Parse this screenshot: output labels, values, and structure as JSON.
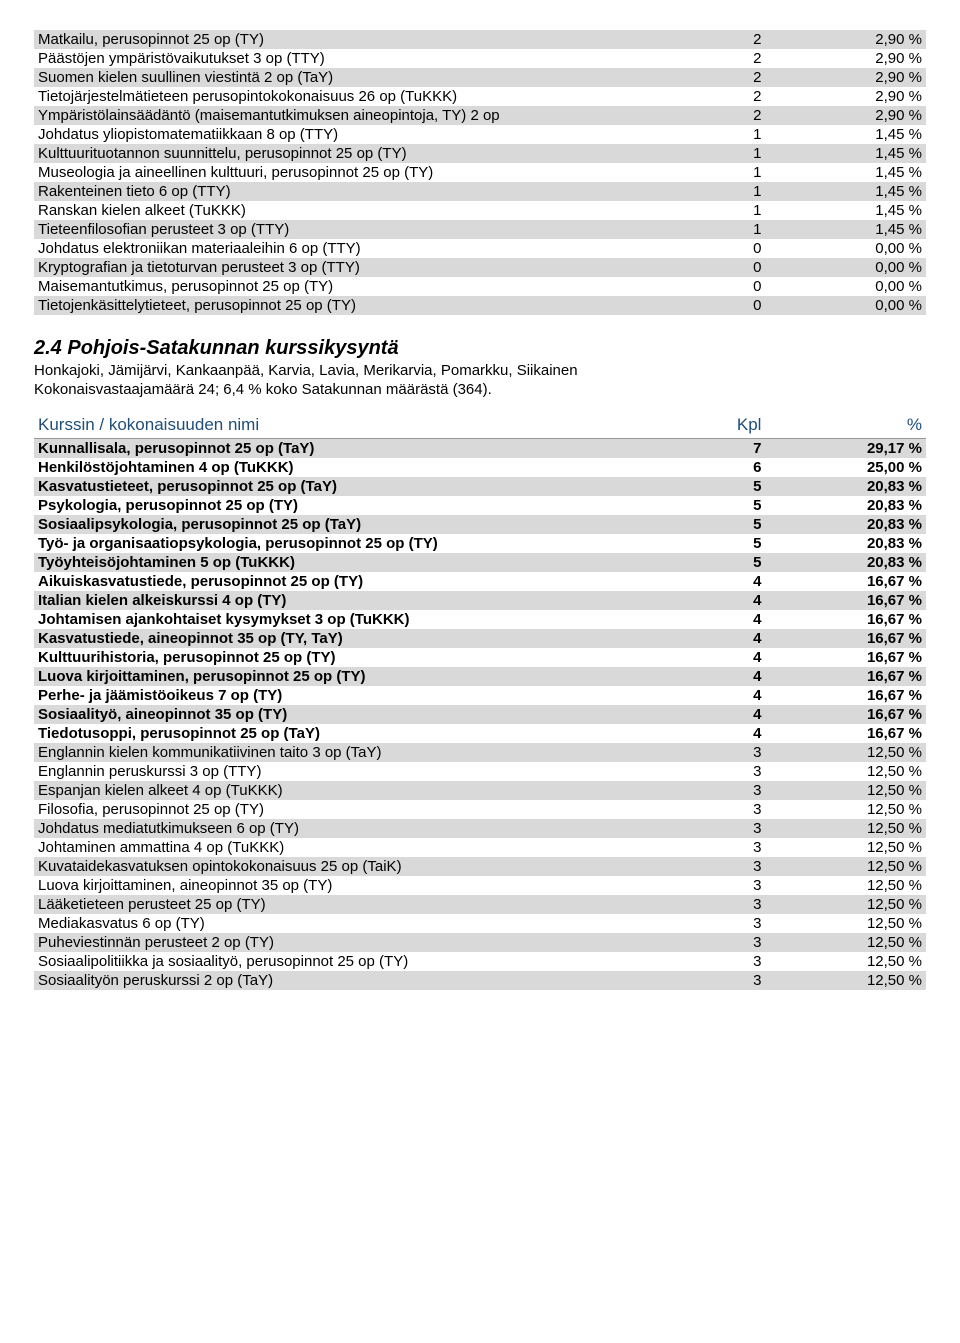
{
  "table1": {
    "rows": [
      {
        "name": "Matkailu, perusopinnot 25 op (TY)",
        "n": "2",
        "p": "2,90 %",
        "shade": true
      },
      {
        "name": "Päästöjen ympäristövaikutukset 3 op (TTY)",
        "n": "2",
        "p": "2,90 %",
        "shade": false
      },
      {
        "name": "Suomen kielen suullinen viestintä 2 op (TaY)",
        "n": "2",
        "p": "2,90 %",
        "shade": true
      },
      {
        "name": "Tietojärjestelmätieteen perusopintokokonaisuus 26 op (TuKKK)",
        "n": "2",
        "p": "2,90 %",
        "shade": false
      },
      {
        "name": "Ympäristölainsäädäntö (maisemantutkimuksen aineopintoja, TY) 2 op",
        "n": "2",
        "p": "2,90 %",
        "shade": true
      },
      {
        "name": "Johdatus yliopistomatematiikkaan 8 op (TTY)",
        "n": "1",
        "p": "1,45 %",
        "shade": false
      },
      {
        "name": "Kulttuurituotannon suunnittelu, perusopinnot 25 op (TY)",
        "n": "1",
        "p": "1,45 %",
        "shade": true
      },
      {
        "name": "Museologia ja aineellinen kulttuuri, perusopinnot 25 op (TY)",
        "n": "1",
        "p": "1,45 %",
        "shade": false
      },
      {
        "name": "Rakenteinen tieto 6 op (TTY)",
        "n": "1",
        "p": "1,45 %",
        "shade": true
      },
      {
        "name": "Ranskan kielen alkeet (TuKKK)",
        "n": "1",
        "p": "1,45 %",
        "shade": false
      },
      {
        "name": "Tieteenfilosofian perusteet 3 op (TTY)",
        "n": "1",
        "p": "1,45 %",
        "shade": true
      },
      {
        "name": "Johdatus elektroniikan materiaaleihin 6 op (TTY)",
        "n": "0",
        "p": "0,00 %",
        "shade": false
      },
      {
        "name": "Kryptografian ja tietoturvan perusteet 3 op (TTY)",
        "n": "0",
        "p": "0,00 %",
        "shade": true
      },
      {
        "name": "Maisemantutkimus, perusopinnot 25 op (TY)",
        "n": "0",
        "p": "0,00 %",
        "shade": false
      },
      {
        "name": "Tietojenkäsittelytieteet, perusopinnot 25 op (TY)",
        "n": "0",
        "p": "0,00 %",
        "shade": true
      }
    ]
  },
  "section": {
    "heading": "2.4 Pohjois-Satakunnan kurssikysyntä",
    "line1": "Honkajoki, Jämijärvi, Kankaanpää, Karvia, Lavia, Merikarvia, Pomarkku, Siikainen",
    "line2": "Kokonaisvastaajamäärä 24; 6,4 % koko Satakunnan määrästä (364)."
  },
  "table2": {
    "header": {
      "c1": "Kurssin / kokonaisuuden nimi",
      "c2": "Kpl",
      "c3": "%"
    },
    "rows": [
      {
        "name": "Kunnallisala, perusopinnot 25 op (TaY)",
        "n": "7",
        "p": "29,17 %",
        "shade": true,
        "bold": true
      },
      {
        "name": "Henkilöstöjohtaminen 4 op (TuKKK)",
        "n": "6",
        "p": "25,00 %",
        "shade": false,
        "bold": true
      },
      {
        "name": "Kasvatustieteet, perusopinnot 25 op (TaY)",
        "n": "5",
        "p": "20,83 %",
        "shade": true,
        "bold": true
      },
      {
        "name": "Psykologia, perusopinnot 25 op (TY)",
        "n": "5",
        "p": "20,83 %",
        "shade": false,
        "bold": true
      },
      {
        "name": "Sosiaalipsykologia, perusopinnot 25 op (TaY)",
        "n": "5",
        "p": "20,83 %",
        "shade": true,
        "bold": true
      },
      {
        "name": "Työ- ja organisaatiopsykologia, perusopinnot 25 op (TY)",
        "n": "5",
        "p": "20,83 %",
        "shade": false,
        "bold": true
      },
      {
        "name": "Työyhteisöjohtaminen 5 op (TuKKK)",
        "n": "5",
        "p": "20,83 %",
        "shade": true,
        "bold": true
      },
      {
        "name": "Aikuiskasvatustiede, perusopinnot 25 op (TY)",
        "n": "4",
        "p": "16,67 %",
        "shade": false,
        "bold": true
      },
      {
        "name": "Italian kielen alkeiskurssi 4 op (TY)",
        "n": "4",
        "p": "16,67 %",
        "shade": true,
        "bold": true
      },
      {
        "name": "Johtamisen ajankohtaiset kysymykset 3 op (TuKKK)",
        "n": "4",
        "p": "16,67 %",
        "shade": false,
        "bold": true
      },
      {
        "name": "Kasvatustiede, aineopinnot 35 op (TY, TaY)",
        "n": "4",
        "p": "16,67 %",
        "shade": true,
        "bold": true
      },
      {
        "name": "Kulttuurihistoria, perusopinnot 25 op (TY)",
        "n": "4",
        "p": "16,67 %",
        "shade": false,
        "bold": true
      },
      {
        "name": "Luova kirjoittaminen, perusopinnot 25 op (TY)",
        "n": "4",
        "p": "16,67 %",
        "shade": true,
        "bold": true
      },
      {
        "name": "Perhe- ja jäämistöoikeus 7 op (TY)",
        "n": "4",
        "p": "16,67 %",
        "shade": false,
        "bold": true
      },
      {
        "name": "Sosiaalityö, aineopinnot 35 op (TY)",
        "n": "4",
        "p": "16,67 %",
        "shade": true,
        "bold": true
      },
      {
        "name": "Tiedotusoppi, perusopinnot 25 op (TaY)",
        "n": "4",
        "p": "16,67 %",
        "shade": false,
        "bold": true
      },
      {
        "name": "Englannin kielen kommunikatiivinen taito 3 op (TaY)",
        "n": "3",
        "p": "12,50 %",
        "shade": true,
        "bold": false
      },
      {
        "name": "Englannin peruskurssi 3 op (TTY)",
        "n": "3",
        "p": "12,50 %",
        "shade": false,
        "bold": false
      },
      {
        "name": "Espanjan kielen alkeet 4 op (TuKKK)",
        "n": "3",
        "p": "12,50 %",
        "shade": true,
        "bold": false
      },
      {
        "name": "Filosofia, perusopinnot 25 op (TY)",
        "n": "3",
        "p": "12,50 %",
        "shade": false,
        "bold": false
      },
      {
        "name": "Johdatus mediatutkimukseen 6 op (TY)",
        "n": "3",
        "p": "12,50 %",
        "shade": true,
        "bold": false
      },
      {
        "name": "Johtaminen ammattina 4 op (TuKKK)",
        "n": "3",
        "p": "12,50 %",
        "shade": false,
        "bold": false
      },
      {
        "name": "Kuvataidekasvatuksen opintokokonaisuus 25 op (TaiK)",
        "n": "3",
        "p": "12,50 %",
        "shade": true,
        "bold": false
      },
      {
        "name": "Luova kirjoittaminen, aineopinnot 35 op (TY)",
        "n": "3",
        "p": "12,50 %",
        "shade": false,
        "bold": false
      },
      {
        "name": "Lääketieteen perusteet 25 op (TY)",
        "n": "3",
        "p": "12,50 %",
        "shade": true,
        "bold": false
      },
      {
        "name": "Mediakasvatus 6 op (TY)",
        "n": "3",
        "p": "12,50 %",
        "shade": false,
        "bold": false
      },
      {
        "name": "Puheviestinnän perusteet 2 op (TY)",
        "n": "3",
        "p": "12,50 %",
        "shade": true,
        "bold": false
      },
      {
        "name": "Sosiaalipolitiikka ja sosiaalityö, perusopinnot 25 op (TY)",
        "n": "3",
        "p": "12,50 %",
        "shade": false,
        "bold": false
      },
      {
        "name": "Sosiaalityön peruskurssi 2 op (TaY)",
        "n": "3",
        "p": "12,50 %",
        "shade": true,
        "bold": false
      }
    ]
  }
}
